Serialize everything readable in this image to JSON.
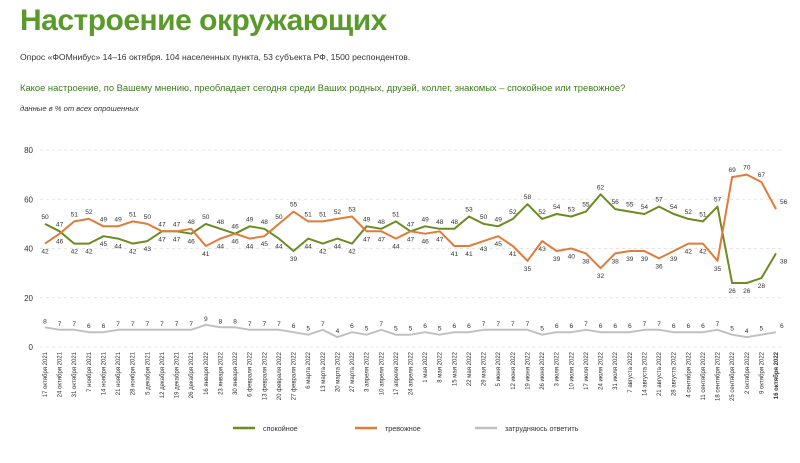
{
  "header": {
    "title": "Настроение окружающих",
    "survey": "Опрос «ФОМнибус» 14–16 октября. 104 населенных пункта, 53 субъекта РФ, 1500 респондентов.",
    "question": "Какое настроение, по Вашему мнению, преобладает сегодня среди Ваших родных, друзей, коллег, знакомых – спокойное или тревожное?",
    "note": "данные в % от всех опрошенных"
  },
  "colors": {
    "calm": "#6b8c21",
    "anxious": "#e07b39",
    "unsure": "#c0c0c0",
    "title": "#5a9a2a",
    "grid": "#dddddd"
  },
  "chart_data": {
    "type": "line",
    "ylim": [
      0,
      80
    ],
    "yticks": [
      0,
      20,
      40,
      60,
      80
    ],
    "grid": "horizontal dashed",
    "legend_position": "bottom",
    "categories": [
      "17 октября 2021",
      "24 октября 2021",
      "31 октября 2021",
      "7 ноября 2021",
      "14 ноября 2021",
      "21 ноября 2021",
      "28 ноября 2021",
      "5 декабря 2021",
      "12 декабря 2021",
      "19 декабря 2021",
      "26 декабря 2021",
      "16 января 2022",
      "23 января 2022",
      "30 января 2022",
      "6 февраля 2022",
      "13 февраля 2022",
      "20 февраля 2022",
      "27 февраля 2022",
      "6 марта 2022",
      "13 марта 2022",
      "20 марта 2022",
      "27 марта 2022",
      "3 апреля 2022",
      "10 апреля 2022",
      "17 апреля 2022",
      "24 апреля 2022",
      "1 мая 2022",
      "8 мая 2022",
      "15 мая 2022",
      "22 мая 2022",
      "29 мая 2022",
      "5 июня 2022",
      "12 июня 2022",
      "19 июня 2022",
      "26 июня 2022",
      "3 июля 2022",
      "10 июля 2022",
      "17 июля 2022",
      "24 июля 2022",
      "31 июля 2022",
      "7 августа 2022",
      "14 августа 2022",
      "21 августа 2022",
      "28 августа 2022",
      "4 сентября 2022",
      "11 сентября 2022",
      "18 сентября 2022",
      "25 сентября 2022",
      "2 октября 2022",
      "9 октября 2022",
      "16 октября 2022"
    ],
    "series": [
      {
        "name": "спокойное",
        "values": [
          50,
          47,
          42,
          42,
          45,
          44,
          42,
          43,
          47,
          47,
          46,
          50,
          48,
          46,
          49,
          48,
          44,
          39,
          44,
          42,
          44,
          42,
          49,
          48,
          51,
          47,
          49,
          48,
          48,
          53,
          50,
          49,
          52,
          58,
          52,
          54,
          53,
          55,
          62,
          56,
          55,
          54,
          57,
          54,
          52,
          51,
          57,
          26,
          26,
          28,
          38
        ]
      },
      {
        "name": "тревожное",
        "values": [
          42,
          46,
          51,
          52,
          49,
          49,
          51,
          50,
          47,
          47,
          48,
          41,
          44,
          46,
          44,
          45,
          50,
          55,
          51,
          51,
          52,
          53,
          47,
          47,
          44,
          47,
          46,
          47,
          41,
          41,
          43,
          45,
          41,
          35,
          43,
          39,
          40,
          38,
          32,
          38,
          39,
          39,
          36,
          39,
          42,
          42,
          35,
          69,
          70,
          67,
          56
        ]
      },
      {
        "name": "затрудняюсь ответить",
        "values": [
          8,
          7,
          7,
          6,
          6,
          7,
          7,
          7,
          7,
          7,
          7,
          9,
          8,
          8,
          7,
          7,
          7,
          6,
          5,
          7,
          4,
          6,
          5,
          7,
          5,
          5,
          6,
          5,
          6,
          6,
          7,
          7,
          7,
          7,
          5,
          6,
          6,
          7,
          6,
          6,
          6,
          7,
          7,
          6,
          6,
          6,
          7,
          5,
          4,
          5,
          6
        ]
      }
    ]
  }
}
